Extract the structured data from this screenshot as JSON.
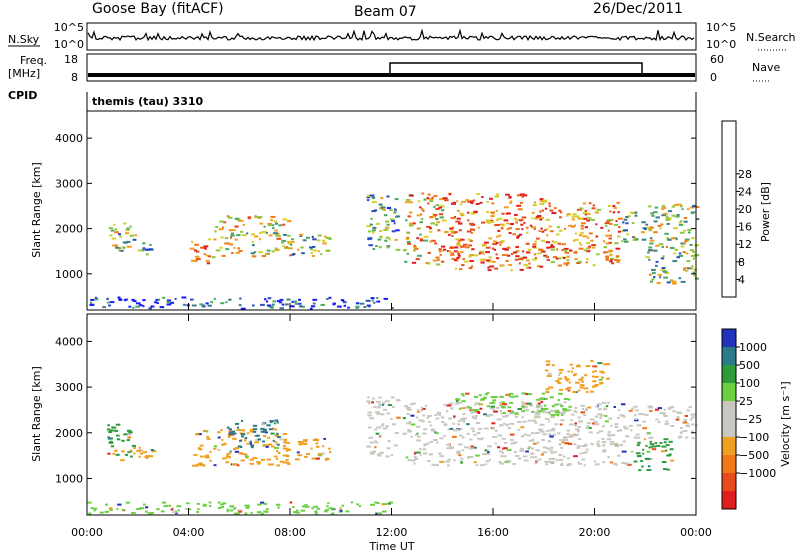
{
  "header": {
    "radar": "Goose Bay (fitACF)",
    "beam": "Beam 07",
    "date": "26/Dec/2011"
  },
  "top_panels": {
    "nsky_label": "N.Sky",
    "nsearch_label": "N.Search",
    "nsky_ticks": [
      "10^5",
      "10^0"
    ],
    "nsearch_ticks": [
      "10^5",
      "10^0"
    ],
    "freq_label_1": "Freq.",
    "freq_label_2": "[MHz]",
    "freq_ticks": [
      "18",
      "8"
    ],
    "nave_label": "Nave",
    "nave_ticks": [
      "60",
      "0"
    ],
    "cpid_label": "CPID",
    "cpid_value": "themis (tau) 3310"
  },
  "chart_data": [
    {
      "type": "heatmap",
      "name": "power",
      "ylabel": "Slant Range [km]",
      "ylim": [
        200,
        4600
      ],
      "yticks": [
        1000,
        2000,
        3000,
        4000
      ],
      "xlim": [
        0,
        24
      ],
      "colorbar_label": "Power [dB]",
      "colorbar_ticks": [
        "4",
        "8",
        "12",
        "16",
        "20",
        "24",
        "28"
      ],
      "colorbar_colors": [
        "#1a1aff",
        "#2a50b8",
        "#3c7e8a",
        "#4aa864",
        "#8cc83c",
        "#d4d02a",
        "#f0a020",
        "#f07818",
        "#e84a1a",
        "#e01e1e"
      ],
      "patches": [
        {
          "t0": 0.75,
          "t1": 1.9,
          "r0": 1500,
          "r1": 2200,
          "level": 0.45
        },
        {
          "t0": 1.9,
          "t1": 2.7,
          "r0": 1400,
          "r1": 1700,
          "level": 0.3
        },
        {
          "t0": 4.0,
          "t1": 5.0,
          "r0": 1250,
          "r1": 1800,
          "level": 0.75
        },
        {
          "t0": 5.0,
          "t1": 8.0,
          "r0": 1400,
          "r1": 2300,
          "level": 0.55
        },
        {
          "t0": 8.0,
          "t1": 9.6,
          "r0": 1400,
          "r1": 1900,
          "level": 0.4
        },
        {
          "t0": 11.0,
          "t1": 12.2,
          "r0": 1500,
          "r1": 2800,
          "level": 0.35
        },
        {
          "t0": 12.4,
          "t1": 14.0,
          "r0": 1200,
          "r1": 2800,
          "level": 0.65
        },
        {
          "t0": 14.0,
          "t1": 18.0,
          "r0": 1100,
          "r1": 2800,
          "level": 0.8
        },
        {
          "t0": 18.0,
          "t1": 21.0,
          "r0": 1200,
          "r1": 2600,
          "level": 0.7
        },
        {
          "t0": 21.0,
          "t1": 22.0,
          "r0": 1700,
          "r1": 2400,
          "level": 0.4
        },
        {
          "t0": 22.0,
          "t1": 24.0,
          "r0": 800,
          "r1": 2600,
          "level": 0.45
        },
        {
          "t0": 0.0,
          "t1": 12.0,
          "r0": 250,
          "r1": 500,
          "level": 0.1
        }
      ]
    },
    {
      "type": "heatmap",
      "name": "velocity",
      "ylabel": "Slant Range [km]",
      "ylim": [
        200,
        4600
      ],
      "yticks": [
        1000,
        2000,
        3000,
        4000
      ],
      "xlim": [
        0,
        24
      ],
      "xticks": [
        "00:00",
        "04:00",
        "08:00",
        "12:00",
        "16:00",
        "20:00",
        "00:00"
      ],
      "xlabel": "Time UT",
      "colorbar_label": "Velocity [m s⁻¹]",
      "colorbar_ticks": [
        "1000",
        "500",
        "100",
        "25",
        "−25",
        "−100",
        "−500",
        "−1000"
      ],
      "colorbar_colors": [
        "#2233bb",
        "#2a7a8a",
        "#2f9a3a",
        "#6ad040",
        "#c8c8c0",
        "#c8c8c0",
        "#f0a020",
        "#f07818",
        "#e84a1a",
        "#e01e1e"
      ],
      "patches": [
        {
          "t0": 0.75,
          "t1": 1.9,
          "r0": 1500,
          "r1": 2200,
          "color": "#2f9a3a"
        },
        {
          "t0": 1.0,
          "t1": 2.7,
          "r0": 1400,
          "r1": 1700,
          "color": "#f0a020"
        },
        {
          "t0": 4.0,
          "t1": 8.0,
          "r0": 1300,
          "r1": 2100,
          "color": "#f0a020"
        },
        {
          "t0": 5.5,
          "t1": 7.5,
          "r0": 1700,
          "r1": 2300,
          "color": "#2a7a8a"
        },
        {
          "t0": 8.0,
          "t1": 9.6,
          "r0": 1400,
          "r1": 1900,
          "color": "#f0a020"
        },
        {
          "t0": 11.0,
          "t1": 12.2,
          "r0": 1500,
          "r1": 2800,
          "color": "#c8c8c0"
        },
        {
          "t0": 12.4,
          "t1": 21.5,
          "r0": 1300,
          "r1": 2700,
          "color": "#c8c8c0"
        },
        {
          "t0": 14.5,
          "t1": 19.0,
          "r0": 2400,
          "r1": 2900,
          "color": "#6ad040"
        },
        {
          "t0": 18.0,
          "t1": 20.5,
          "r0": 2900,
          "r1": 3600,
          "color": "#f0a020"
        },
        {
          "t0": 21.5,
          "t1": 24.0,
          "r0": 1900,
          "r1": 2600,
          "color": "#c8c8c0"
        },
        {
          "t0": 21.5,
          "t1": 23.0,
          "r0": 1200,
          "r1": 1900,
          "color": "#2f9a3a"
        },
        {
          "t0": 0.0,
          "t1": 12.0,
          "r0": 250,
          "r1": 500,
          "color": "#6ad040"
        }
      ]
    }
  ]
}
